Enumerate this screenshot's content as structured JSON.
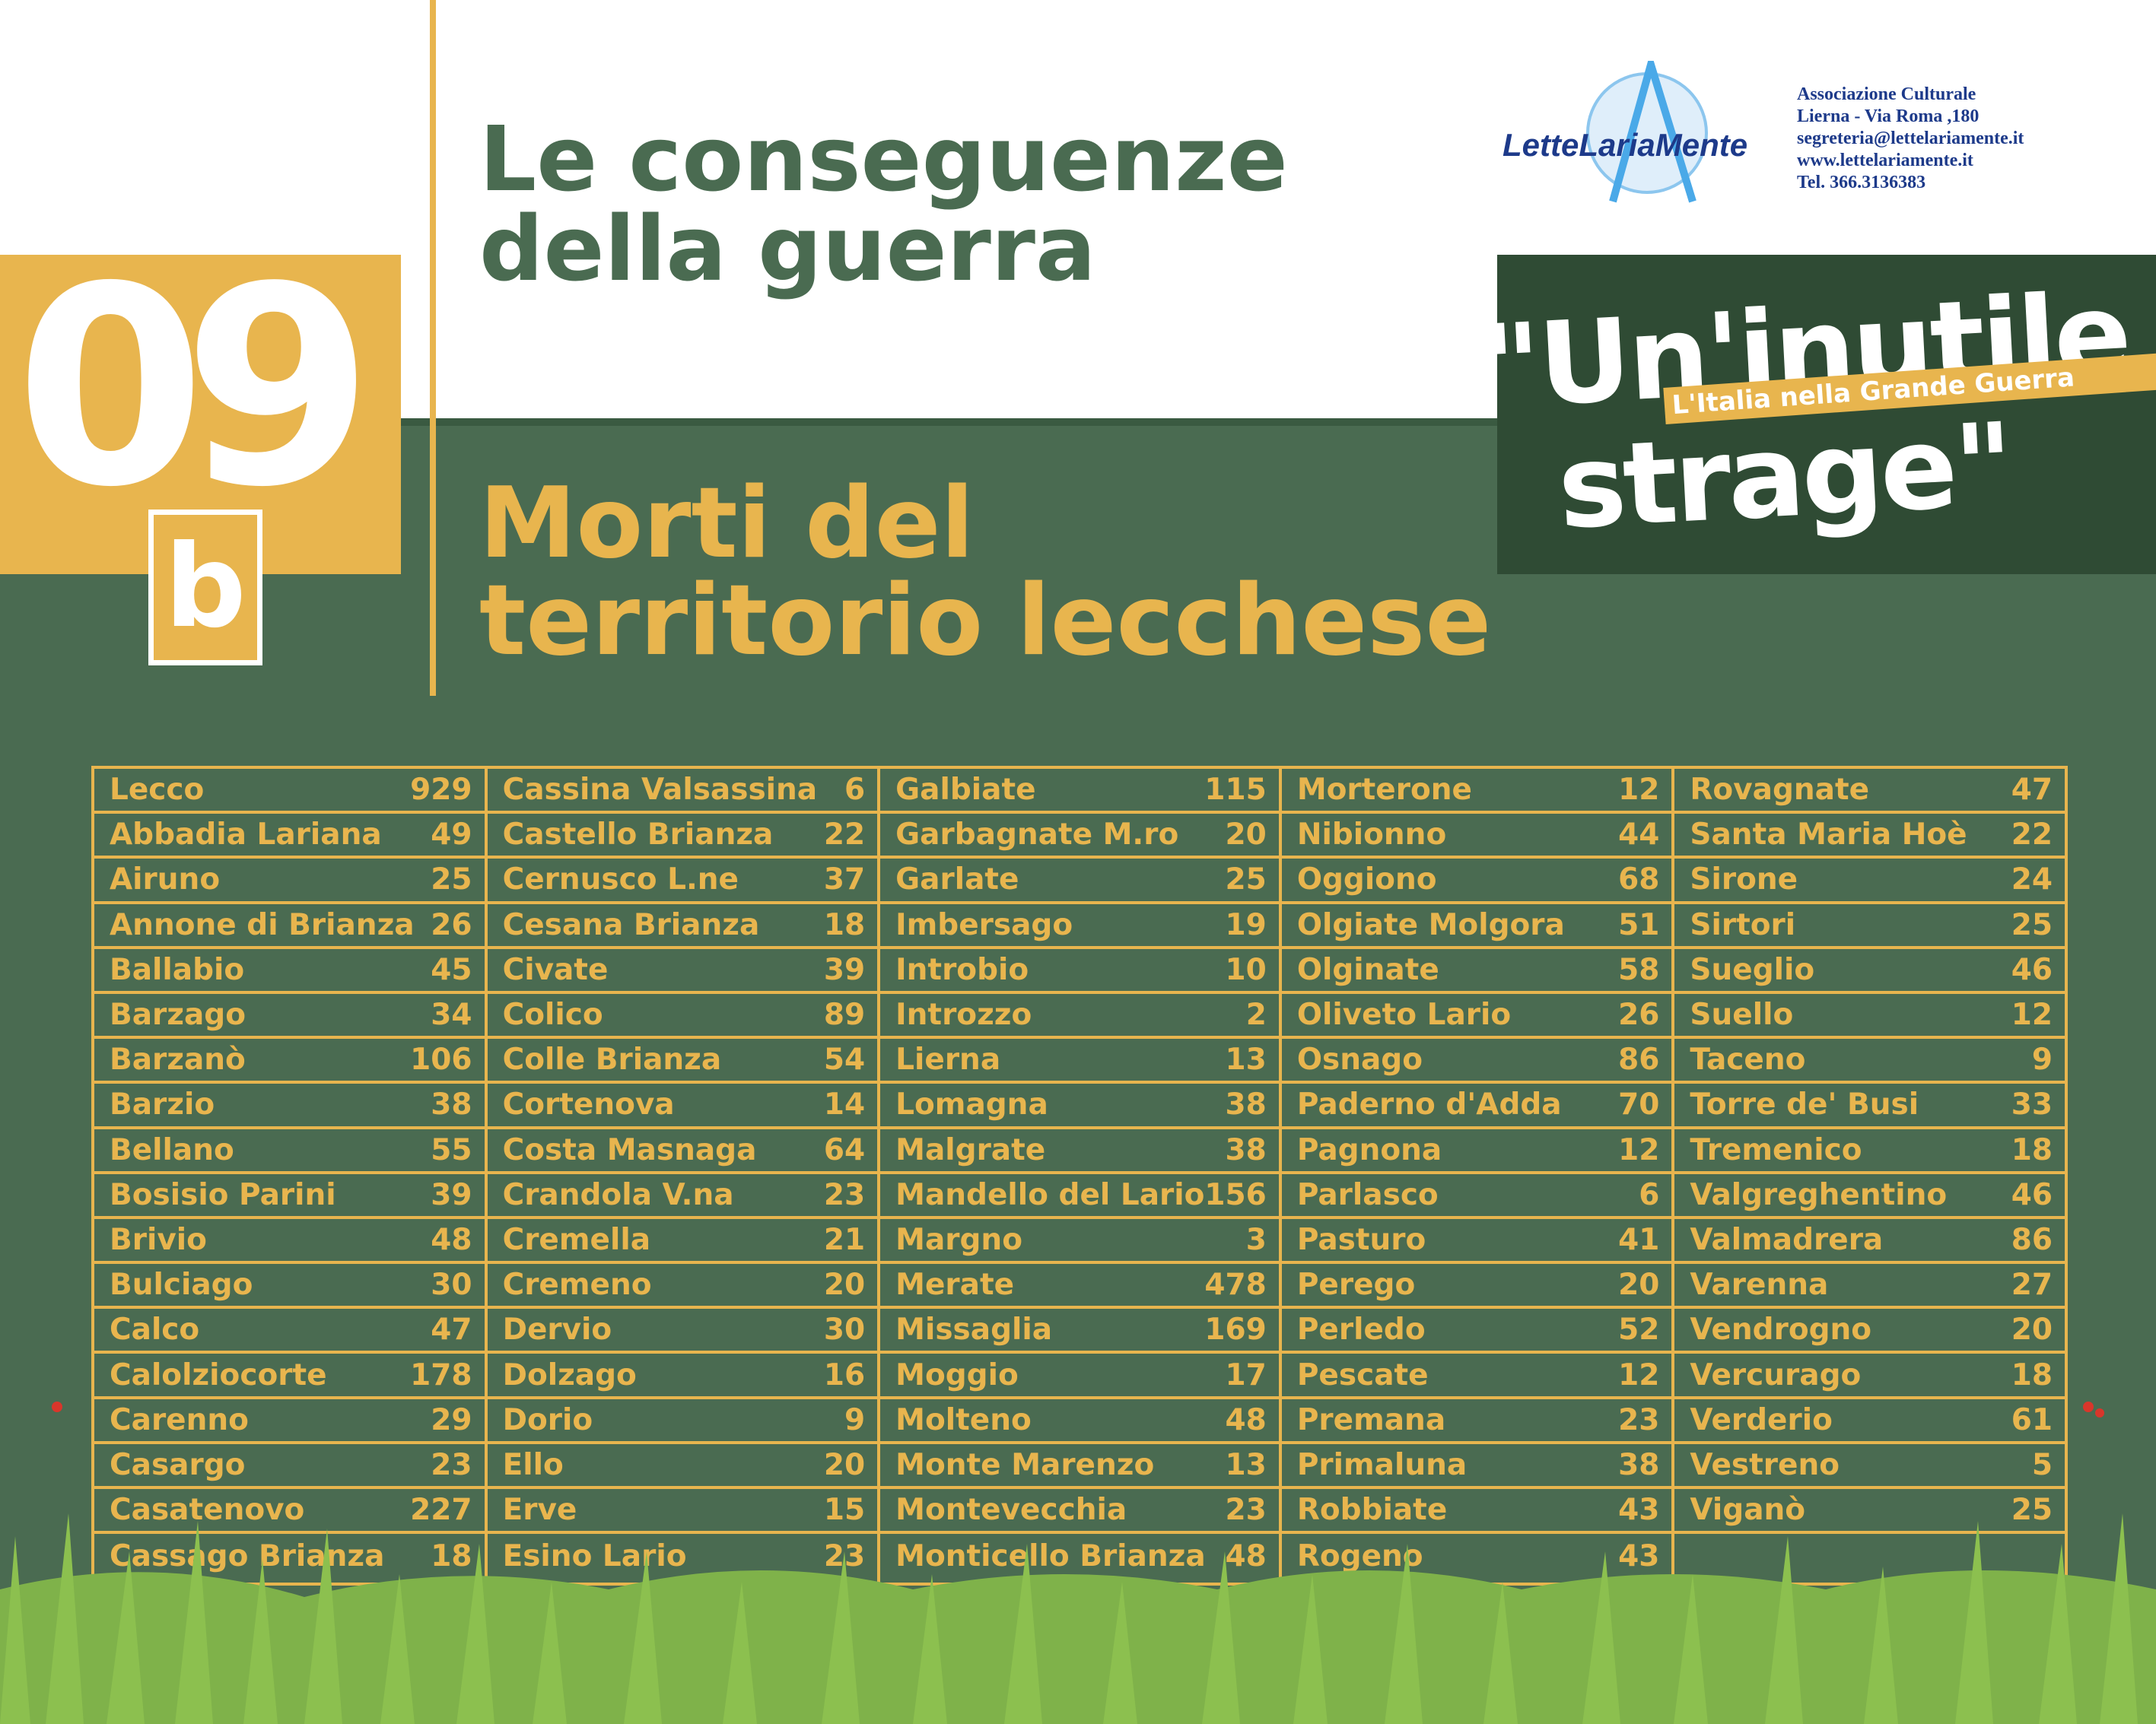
{
  "header": {
    "number": "09",
    "sub": "b",
    "title_line1": "Le conseguenze",
    "title_line2": "della guerra",
    "subtitle_line1": "Morti del",
    "subtitle_line2": "territorio lecchese"
  },
  "logo": {
    "text": "LetteLariaMente"
  },
  "org": {
    "line1": "Associazione Culturale",
    "line2": "Lierna - Via Roma ,180",
    "line3": "segreteria@lettelariamente.it",
    "line4": "www.lettelariamente.it",
    "line5": "Tel. 366.3136383"
  },
  "badge": {
    "line1": "\"Un'inutile",
    "line2": "strage\"",
    "ribbon": "L'Italia nella Grande Guerra"
  },
  "colors": {
    "green": "#4a6b51",
    "dark_green": "#2f4b34",
    "gold": "#e8b54e",
    "white": "#ffffff"
  },
  "table": {
    "columns": [
      [
        {
          "n": "Lecco",
          "v": "929"
        },
        {
          "n": "Abbadia Lariana",
          "v": "49"
        },
        {
          "n": "Airuno",
          "v": "25"
        },
        {
          "n": "Annone di Brianza",
          "v": "26"
        },
        {
          "n": "Ballabio",
          "v": "45"
        },
        {
          "n": "Barzago",
          "v": "34"
        },
        {
          "n": "Barzanò",
          "v": "106"
        },
        {
          "n": "Barzio",
          "v": "38"
        },
        {
          "n": "Bellano",
          "v": "55"
        },
        {
          "n": "Bosisio Parini",
          "v": "39"
        },
        {
          "n": "Brivio",
          "v": "48"
        },
        {
          "n": "Bulciago",
          "v": "30"
        },
        {
          "n": "Calco",
          "v": "47"
        },
        {
          "n": "Calolziocorte",
          "v": "178"
        },
        {
          "n": "Carenno",
          "v": "29"
        },
        {
          "n": "Casargo",
          "v": "23"
        },
        {
          "n": "Casatenovo",
          "v": "227"
        },
        {
          "n": "Cassago Brianza",
          "v": "18"
        }
      ],
      [
        {
          "n": "Cassina Valsassina",
          "v": "6"
        },
        {
          "n": "Castello Brianza",
          "v": "22"
        },
        {
          "n": "Cernusco L.ne",
          "v": "37"
        },
        {
          "n": "Cesana Brianza",
          "v": "18"
        },
        {
          "n": "Civate",
          "v": "39"
        },
        {
          "n": "Colico",
          "v": "89"
        },
        {
          "n": "Colle Brianza",
          "v": "54"
        },
        {
          "n": "Cortenova",
          "v": "14"
        },
        {
          "n": "Costa Masnaga",
          "v": "64"
        },
        {
          "n": "Crandola V.na",
          "v": "23"
        },
        {
          "n": "Cremella",
          "v": "21"
        },
        {
          "n": "Cremeno",
          "v": "20"
        },
        {
          "n": "Dervio",
          "v": "30"
        },
        {
          "n": "Dolzago",
          "v": "16"
        },
        {
          "n": "Dorio",
          "v": "9"
        },
        {
          "n": "Ello",
          "v": "20"
        },
        {
          "n": "Erve",
          "v": "15"
        },
        {
          "n": "Esino Lario",
          "v": "23"
        }
      ],
      [
        {
          "n": "Galbiate",
          "v": "115"
        },
        {
          "n": "Garbagnate M.ro",
          "v": "20"
        },
        {
          "n": "Garlate",
          "v": "25"
        },
        {
          "n": "Imbersago",
          "v": "19"
        },
        {
          "n": "Introbio",
          "v": "10"
        },
        {
          "n": "Introzzo",
          "v": "2"
        },
        {
          "n": "Lierna",
          "v": "13"
        },
        {
          "n": "Lomagna",
          "v": "38"
        },
        {
          "n": "Malgrate",
          "v": "38"
        },
        {
          "n": "Mandello del Lario",
          "v": "156"
        },
        {
          "n": "Margno",
          "v": "3"
        },
        {
          "n": "Merate",
          "v": "478"
        },
        {
          "n": "Missaglia",
          "v": "169"
        },
        {
          "n": "Moggio",
          "v": "17"
        },
        {
          "n": "Molteno",
          "v": "48"
        },
        {
          "n": "Monte Marenzo",
          "v": "13"
        },
        {
          "n": "Montevecchia",
          "v": "23"
        },
        {
          "n": "Monticello Brianza",
          "v": "48"
        }
      ],
      [
        {
          "n": "Morterone",
          "v": "12"
        },
        {
          "n": "Nibionno",
          "v": "44"
        },
        {
          "n": "Oggiono",
          "v": "68"
        },
        {
          "n": "Olgiate Molgora",
          "v": "51"
        },
        {
          "n": "Olginate",
          "v": "58"
        },
        {
          "n": "Oliveto Lario",
          "v": "26"
        },
        {
          "n": "Osnago",
          "v": "86"
        },
        {
          "n": "Paderno d'Adda",
          "v": "70"
        },
        {
          "n": "Pagnona",
          "v": "12"
        },
        {
          "n": "Parlasco",
          "v": "6"
        },
        {
          "n": "Pasturo",
          "v": "41"
        },
        {
          "n": "Perego",
          "v": "20"
        },
        {
          "n": "Perledo",
          "v": "52"
        },
        {
          "n": "Pescate",
          "v": "12"
        },
        {
          "n": "Premana",
          "v": "23"
        },
        {
          "n": "Primaluna",
          "v": "38"
        },
        {
          "n": "Robbiate",
          "v": "43"
        },
        {
          "n": "Rogeno",
          "v": "43"
        }
      ],
      [
        {
          "n": "Rovagnate",
          "v": "47"
        },
        {
          "n": "Santa Maria Hoè",
          "v": "22"
        },
        {
          "n": "Sirone",
          "v": "24"
        },
        {
          "n": "Sirtori",
          "v": "25"
        },
        {
          "n": "Sueglio",
          "v": "46"
        },
        {
          "n": "Suello",
          "v": "12"
        },
        {
          "n": "Taceno",
          "v": "9"
        },
        {
          "n": "Torre de' Busi",
          "v": "33"
        },
        {
          "n": "Tremenico",
          "v": "18"
        },
        {
          "n": "Valgreghentino",
          "v": "46"
        },
        {
          "n": "Valmadrera",
          "v": "86"
        },
        {
          "n": "Varenna",
          "v": "27"
        },
        {
          "n": "Vendrogno",
          "v": "20"
        },
        {
          "n": "Vercurago",
          "v": "18"
        },
        {
          "n": "Verderio",
          "v": "61"
        },
        {
          "n": "Vestreno",
          "v": "5"
        },
        {
          "n": "Viganò",
          "v": "25"
        },
        {
          "n": "",
          "v": ""
        }
      ]
    ]
  }
}
